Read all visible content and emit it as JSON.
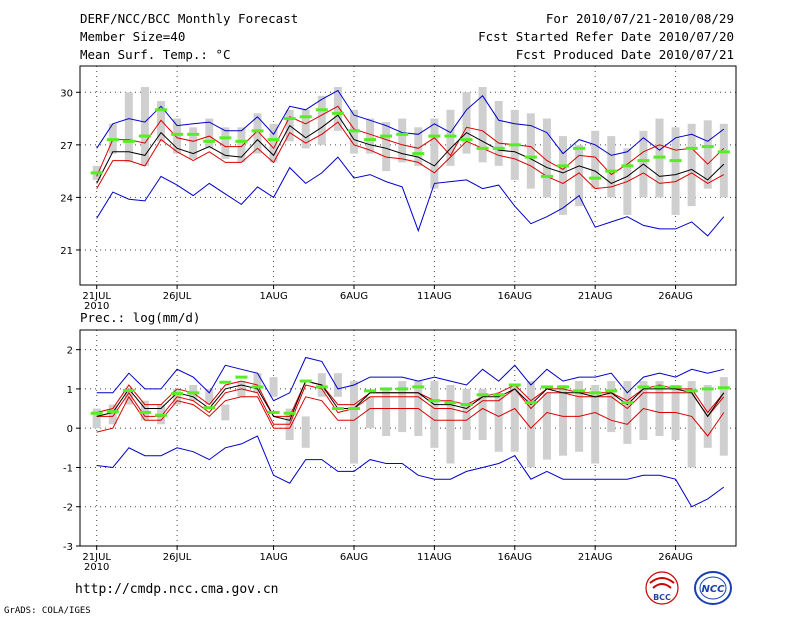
{
  "header": {
    "title": "DERF/NCC/BCC Monthly Forecast",
    "member_size": "Member Size=40",
    "variable": "Mean Surf. Temp.: °C",
    "forecast_period": "For 2010/07/21-2010/08/29",
    "refer_date": "Fcst Started Refer Date 2010/07/20",
    "produced_date": "Fcst Produced Date 2010/07/21"
  },
  "footer": {
    "url": "http://cmdp.ncc.cma.gov.cn",
    "credit": "GrADS: COLA/IGES",
    "logo_bcc": "BCC",
    "logo_ncc": "NCC"
  },
  "colors": {
    "grey_box": "#cfcfcf",
    "green_mark": "#55ee22",
    "median": "#000000",
    "percentile": "#dd0000",
    "extreme": "#0000cc"
  },
  "chart_data": [
    {
      "type": "line",
      "title": "Mean Surf. Temp.: °C",
      "ylim": [
        19,
        31.5
      ],
      "yticks": [
        21,
        24,
        27,
        30
      ],
      "x_tick_labels": [
        "21JUL",
        "26JUL",
        "1AUG",
        "6AUG",
        "11AUG",
        "16AUG",
        "21AUG",
        "26AUG"
      ],
      "x_tick_days": [
        1,
        6,
        12,
        17,
        22,
        27,
        32,
        37
      ],
      "year_label": "2010",
      "days": 40,
      "series": [
        {
          "name": "box_upper",
          "values": [
            25.8,
            28.2,
            30.0,
            30.3,
            29.5,
            28.5,
            28.0,
            28.5,
            28.0,
            28.0,
            28.8,
            28.2,
            29.0,
            29.0,
            29.8,
            30.3,
            29.0,
            28.5,
            28.3,
            28.5,
            28.0,
            28.5,
            29.0,
            30.0,
            30.3,
            29.5,
            29.0,
            28.8,
            28.5,
            27.5,
            27.0,
            27.8,
            27.5,
            26.8,
            27.8,
            28.5,
            28.0,
            28.2,
            28.4,
            28.2
          ]
        },
        {
          "name": "box_lower",
          "values": [
            25.0,
            26.5,
            26.0,
            25.8,
            27.2,
            26.5,
            26.2,
            26.8,
            26.2,
            26.0,
            26.5,
            26.0,
            27.2,
            26.8,
            27.0,
            27.8,
            26.5,
            26.5,
            25.5,
            26.0,
            25.8,
            24.5,
            25.8,
            26.5,
            26.0,
            25.8,
            25.0,
            24.5,
            24.0,
            23.0,
            23.5,
            24.5,
            24.0,
            23.0,
            24.0,
            24.0,
            23.0,
            23.5,
            24.5,
            24.0
          ]
        },
        {
          "name": "green_mark",
          "values": [
            25.4,
            27.3,
            27.2,
            27.5,
            29.0,
            27.6,
            27.6,
            27.2,
            27.4,
            27.2,
            27.8,
            27.3,
            28.5,
            28.6,
            29.0,
            28.8,
            27.8,
            27.3,
            27.5,
            27.6,
            26.5,
            27.5,
            27.5,
            27.3,
            26.8,
            26.8,
            27.0,
            26.3,
            25.2,
            25.8,
            26.8,
            25.1,
            25.5,
            25.8,
            26.1,
            26.3,
            26.1,
            26.8,
            26.9,
            26.6
          ]
        },
        {
          "name": "max",
          "values": [
            26.8,
            28.2,
            28.5,
            28.3,
            29.2,
            28.1,
            28.2,
            28.3,
            27.8,
            27.8,
            28.6,
            27.6,
            29.2,
            29.0,
            29.6,
            30.1,
            28.7,
            28.4,
            28.1,
            27.7,
            27.6,
            28.2,
            27.7,
            29.0,
            29.8,
            28.4,
            28.2,
            28.1,
            27.7,
            26.5,
            27.3,
            27.0,
            26.4,
            26.6,
            27.4,
            26.7,
            27.4,
            27.6,
            27.2,
            27.9
          ]
        },
        {
          "name": "p75",
          "values": [
            25.2,
            27.3,
            27.3,
            27.1,
            28.4,
            27.4,
            27.2,
            27.5,
            26.9,
            26.9,
            27.8,
            26.8,
            28.6,
            28.2,
            28.7,
            29.2,
            27.9,
            27.6,
            27.3,
            27.0,
            26.8,
            27.4,
            26.4,
            28.0,
            27.8,
            27.1,
            27.0,
            26.9,
            26.1,
            25.6,
            26.4,
            26.3,
            25.3,
            25.9,
            26.6,
            27.0,
            26.7,
            26.8,
            25.9,
            26.8
          ]
        },
        {
          "name": "median",
          "values": [
            24.8,
            26.6,
            26.6,
            26.4,
            27.7,
            26.8,
            26.5,
            26.9,
            26.4,
            26.3,
            27.3,
            26.4,
            28.1,
            27.4,
            28.0,
            28.7,
            27.3,
            27.0,
            26.8,
            26.5,
            26.3,
            25.8,
            26.8,
            27.7,
            27.2,
            26.7,
            26.6,
            26.2,
            25.7,
            25.4,
            25.8,
            25.5,
            24.8,
            25.2,
            25.9,
            25.2,
            25.3,
            25.6,
            25.0,
            25.9
          ]
        },
        {
          "name": "p25",
          "values": [
            24.5,
            26.1,
            26.1,
            25.8,
            27.3,
            26.6,
            26.1,
            26.6,
            26.0,
            26.0,
            26.8,
            26.0,
            27.7,
            27.1,
            27.6,
            28.3,
            27.0,
            26.7,
            26.3,
            26.2,
            26.0,
            25.4,
            26.3,
            27.2,
            26.8,
            26.4,
            26.2,
            25.8,
            25.2,
            24.8,
            25.4,
            24.5,
            24.6,
            24.9,
            25.4,
            24.8,
            24.9,
            25.4,
            24.8,
            25.3
          ]
        },
        {
          "name": "min",
          "values": [
            22.8,
            24.3,
            23.9,
            23.8,
            25.2,
            24.7,
            24.1,
            24.8,
            24.2,
            23.6,
            24.6,
            24.0,
            25.7,
            24.8,
            25.4,
            26.3,
            25.1,
            25.3,
            24.9,
            24.6,
            22.1,
            24.8,
            24.9,
            25.0,
            24.5,
            24.7,
            23.5,
            22.5,
            22.9,
            23.4,
            24.1,
            22.3,
            22.6,
            22.9,
            22.4,
            22.2,
            22.2,
            22.6,
            21.8,
            22.9
          ]
        }
      ]
    },
    {
      "type": "line",
      "title": "Prec.: log(mm/d)",
      "ylim": [
        -3,
        2.5
      ],
      "yticks": [
        -3,
        -2,
        -1,
        0,
        1,
        2
      ],
      "x_tick_labels": [
        "21JUL",
        "26JUL",
        "1AUG",
        "6AUG",
        "11AUG",
        "16AUG",
        "21AUG",
        "26AUG"
      ],
      "x_tick_days": [
        1,
        6,
        12,
        17,
        22,
        27,
        32,
        37
      ],
      "year_label": "2010",
      "days": 40,
      "series": [
        {
          "name": "box_upper",
          "values": [
            0.5,
            0.6,
            1.0,
            0.7,
            0.6,
            1.0,
            1.1,
            1.0,
            0.6,
            1.2,
            1.4,
            1.3,
            0.5,
            0.3,
            1.4,
            1.4,
            1.2,
            0.8,
            1.0,
            1.2,
            1.2,
            1.2,
            1.1,
            1.0,
            1.0,
            0.9,
            1.1,
            1.2,
            0.9,
            1.1,
            1.2,
            1.1,
            1.2,
            1.2,
            1.2,
            1.2,
            1.1,
            1.2,
            1.1,
            1.3
          ]
        },
        {
          "name": "box_lower",
          "values": [
            0.0,
            0.1,
            0.6,
            0.2,
            0.1,
            0.6,
            0.7,
            0.6,
            0.2,
            0.8,
            0.9,
            0.8,
            -0.3,
            -0.5,
            0.8,
            0.8,
            -0.9,
            0.0,
            -0.2,
            -0.1,
            -0.2,
            -0.5,
            -0.9,
            -0.3,
            -0.3,
            -0.6,
            -0.6,
            -1.0,
            -0.8,
            -0.7,
            -0.6,
            -0.9,
            -0.1,
            -0.4,
            -0.3,
            -0.2,
            -0.3,
            -1.0,
            -0.5,
            -0.7
          ]
        },
        {
          "name": "green_mark",
          "values": [
            0.38,
            0.42,
            0.96,
            0.4,
            0.33,
            0.88,
            0.9,
            0.52,
            1.17,
            1.3,
            1.05,
            0.4,
            0.38,
            1.2,
            1.05,
            0.5,
            0.5,
            0.95,
            1.0,
            1.0,
            1.05,
            0.7,
            0.65,
            0.6,
            0.85,
            0.85,
            1.1,
            0.65,
            1.05,
            1.05,
            0.95,
            0.9,
            0.95,
            0.65,
            1.05,
            1.05,
            1.05,
            0.95,
            1.0,
            1.03
          ]
        },
        {
          "name": "max",
          "values": [
            0.9,
            0.9,
            1.4,
            1.0,
            1.0,
            1.5,
            1.3,
            0.9,
            1.6,
            1.5,
            1.4,
            0.7,
            0.9,
            1.8,
            1.7,
            1.0,
            1.1,
            1.3,
            1.3,
            1.3,
            1.2,
            1.3,
            1.2,
            1.1,
            1.5,
            1.2,
            1.6,
            1.1,
            1.5,
            1.2,
            1.3,
            1.3,
            1.4,
            0.9,
            1.3,
            1.4,
            1.3,
            1.5,
            1.4,
            1.5
          ]
        },
        {
          "name": "p75",
          "values": [
            0.4,
            0.5,
            1.1,
            0.6,
            0.6,
            1.0,
            0.9,
            0.6,
            1.1,
            1.2,
            1.1,
            0.3,
            0.3,
            1.2,
            1.1,
            0.6,
            0.6,
            0.9,
            0.9,
            0.9,
            0.9,
            0.7,
            0.7,
            0.6,
            0.8,
            0.9,
            1.1,
            0.7,
            1.0,
            1.0,
            0.9,
            0.9,
            0.9,
            0.7,
            1.0,
            1.1,
            1.0,
            1.0,
            0.4,
            0.9
          ]
        },
        {
          "name": "median",
          "values": [
            0.3,
            0.4,
            1.0,
            0.5,
            0.5,
            0.9,
            0.8,
            0.5,
            1.0,
            1.1,
            1.0,
            0.3,
            0.2,
            1.2,
            1.1,
            0.5,
            0.5,
            0.9,
            0.9,
            0.9,
            0.9,
            0.6,
            0.6,
            0.5,
            0.8,
            0.8,
            1.0,
            0.6,
            1.0,
            0.9,
            0.9,
            0.8,
            0.9,
            0.6,
            1.0,
            1.0,
            1.0,
            0.9,
            0.3,
            0.9
          ]
        },
        {
          "name": "p25",
          "values": [
            0.3,
            0.3,
            0.9,
            0.3,
            0.3,
            0.8,
            0.7,
            0.4,
            0.9,
            1.0,
            0.9,
            0.1,
            0.1,
            1.1,
            1.0,
            0.4,
            0.5,
            0.8,
            0.8,
            0.8,
            0.8,
            0.5,
            0.5,
            0.4,
            0.7,
            0.7,
            1.0,
            0.5,
            0.9,
            0.9,
            0.8,
            0.8,
            0.8,
            0.5,
            0.9,
            0.9,
            0.9,
            0.9,
            0.3,
            0.8
          ]
        },
        {
          "name": "p10",
          "values": [
            -0.1,
            0.0,
            0.8,
            0.2,
            0.2,
            0.7,
            0.6,
            0.3,
            0.7,
            0.8,
            0.8,
            0.0,
            0.0,
            0.8,
            0.7,
            0.2,
            0.2,
            0.5,
            0.5,
            0.5,
            0.5,
            0.2,
            0.2,
            0.2,
            0.5,
            0.3,
            0.5,
            0.0,
            0.4,
            0.3,
            0.3,
            0.4,
            0.2,
            0.1,
            0.5,
            0.4,
            0.4,
            0.3,
            -0.2,
            0.4
          ]
        },
        {
          "name": "min",
          "values": [
            -0.95,
            -1.0,
            -0.5,
            -0.7,
            -0.7,
            -0.5,
            -0.6,
            -0.8,
            -0.5,
            -0.4,
            -0.2,
            -1.2,
            -1.4,
            -0.8,
            -0.8,
            -1.1,
            -1.1,
            -0.8,
            -0.9,
            -0.9,
            -1.2,
            -1.3,
            -1.3,
            -1.1,
            -1.0,
            -0.9,
            -0.7,
            -1.3,
            -1.1,
            -1.3,
            -1.3,
            -1.3,
            -1.3,
            -1.3,
            -1.2,
            -1.2,
            -1.3,
            -2.0,
            -1.8,
            -1.5
          ]
        }
      ]
    }
  ]
}
